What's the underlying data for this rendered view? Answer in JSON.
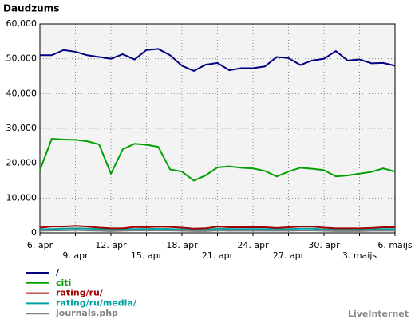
{
  "chart_data": {
    "type": "line",
    "title": "Daudzums",
    "source": "LiveInternet",
    "categories": [
      "6. apr",
      null,
      null,
      "9. apr",
      null,
      null,
      "12. apr",
      null,
      null,
      "15. apr",
      null,
      null,
      "18. apr",
      null,
      null,
      "21. apr",
      null,
      null,
      "24. apr",
      null,
      null,
      "27. apr",
      null,
      null,
      "30. apr",
      null,
      null,
      "3. maijs",
      null,
      null,
      "6. maijs"
    ],
    "ylim": [
      0,
      60000
    ],
    "yticks": [
      0,
      {
        "value": 10000,
        "label": "10,000"
      },
      {
        "value": 20000,
        "label": "20,000"
      },
      {
        "value": 30000,
        "label": "30,000"
      },
      {
        "value": 40000,
        "label": "40,000"
      },
      {
        "value": 50000,
        "label": "50,000"
      },
      {
        "value": 60000,
        "label": "60,000"
      }
    ],
    "grid": true,
    "series": [
      {
        "name": "/",
        "color": "#000080",
        "values": [
          51000,
          51000,
          52500,
          52000,
          51000,
          50500,
          50000,
          51300,
          49800,
          52500,
          52800,
          51000,
          48000,
          46500,
          48300,
          48800,
          46700,
          47300,
          47300,
          47800,
          50500,
          50200,
          48200,
          49500,
          50000,
          52200,
          49500,
          49800,
          48700,
          48800,
          48000
        ]
      },
      {
        "name": "citi",
        "color": "#00a000",
        "values": [
          18000,
          27000,
          26800,
          26700,
          26300,
          25400,
          17000,
          24000,
          25600,
          25300,
          24700,
          18200,
          17600,
          15000,
          16500,
          18800,
          19100,
          18700,
          18500,
          17800,
          16200,
          17600,
          18700,
          18400,
          18000,
          16200,
          16500,
          17000,
          17500,
          18500,
          17600
        ]
      },
      {
        "name": "rating/ru/",
        "color": "#a00000",
        "values": [
          1500,
          1800,
          1800,
          2000,
          1800,
          1500,
          1300,
          1300,
          1700,
          1600,
          1800,
          1700,
          1500,
          1200,
          1300,
          1800,
          1600,
          1600,
          1600,
          1600,
          1400,
          1600,
          1800,
          1800,
          1500,
          1300,
          1300,
          1300,
          1400,
          1600,
          1600
        ]
      },
      {
        "name": "rating/ru/media/",
        "color": "#00a0a0",
        "values": [
          1000,
          1100,
          1200,
          1300,
          1200,
          1100,
          900,
          1000,
          1100,
          1100,
          1200,
          1100,
          1000,
          900,
          900,
          1200,
          1100,
          1100,
          1100,
          1100,
          1000,
          1100,
          1200,
          1200,
          1000,
          900,
          900,
          900,
          1000,
          1100,
          1100
        ]
      },
      {
        "name": "journals.php",
        "color": "#808080",
        "values": [
          600,
          700,
          700,
          800,
          700,
          600,
          500,
          600,
          700,
          700,
          700,
          700,
          600,
          500,
          500,
          700,
          600,
          600,
          600,
          600,
          600,
          600,
          700,
          700,
          600,
          500,
          500,
          500,
          600,
          600,
          600
        ]
      }
    ]
  }
}
